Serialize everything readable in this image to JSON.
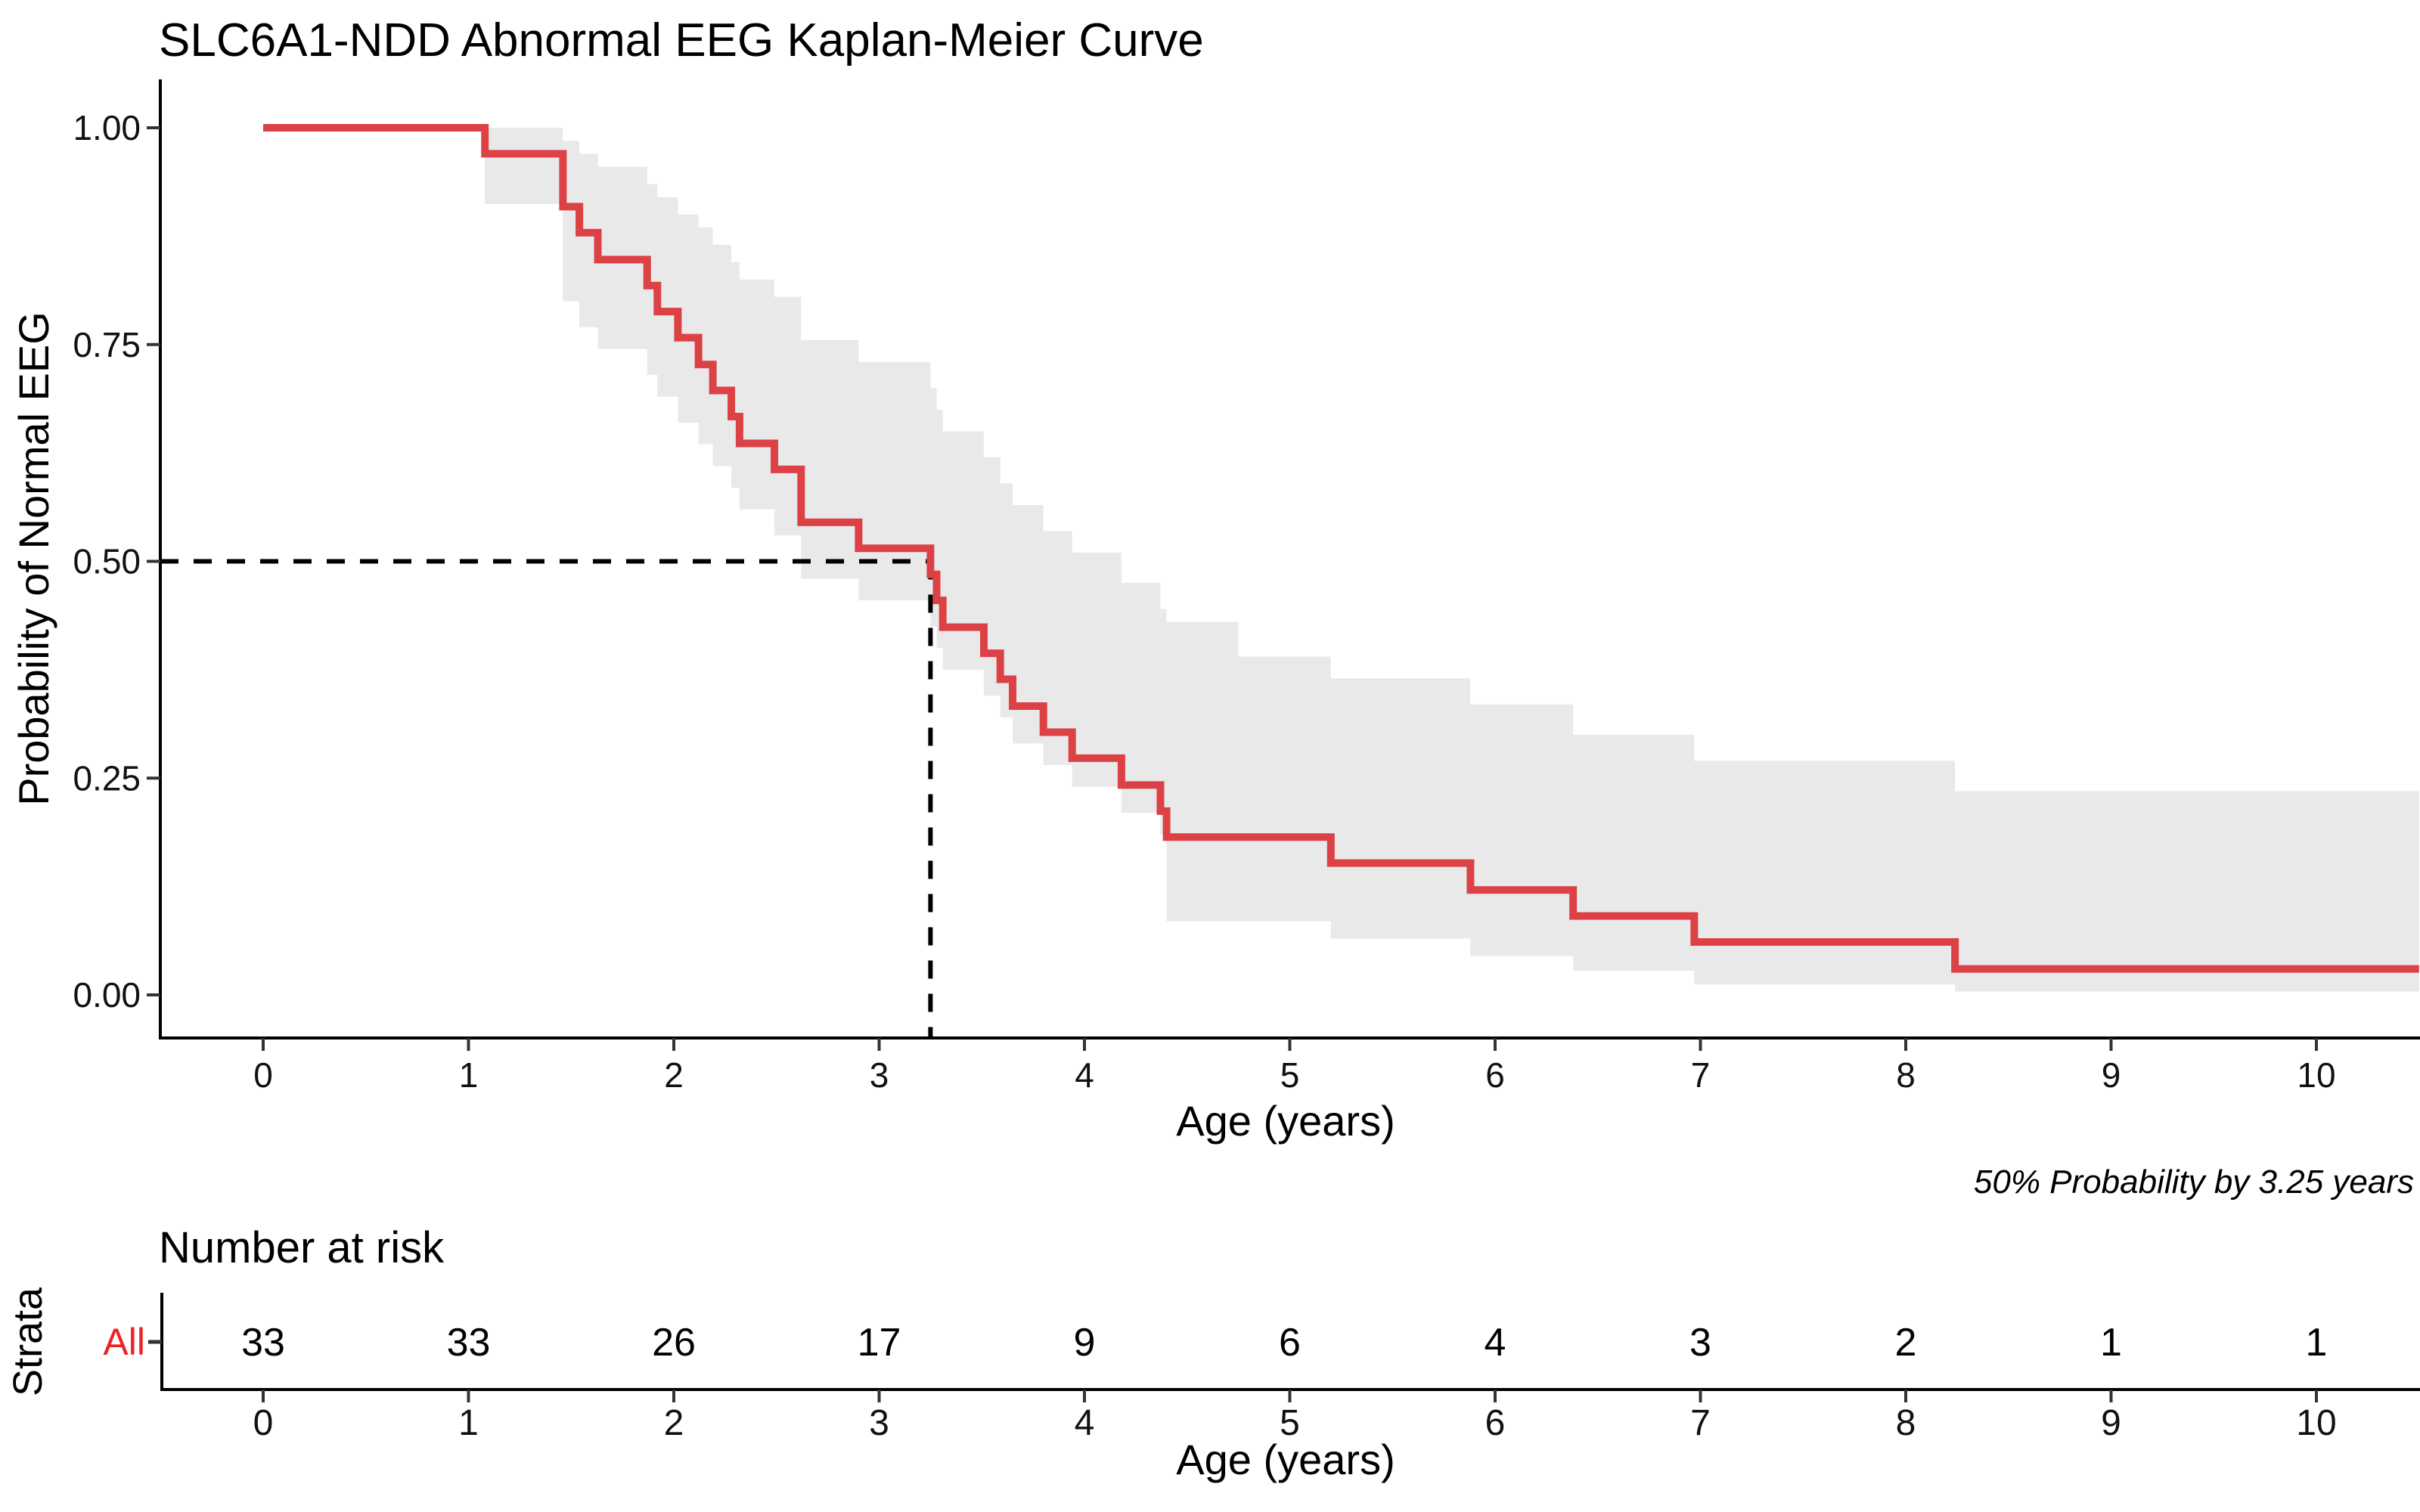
{
  "chart_data": {
    "type": "line",
    "subtype": "kaplan-meier-step",
    "title": "SLC6A1-NDD Abnormal EEG Kaplan-Meier Curve",
    "xlabel": "Age (years)",
    "ylabel": "Probability of Normal EEG",
    "annotation": "50% Probability by 3.25 years",
    "grid": false,
    "legend_position": "none",
    "x_range": [
      -0.5,
      10.5
    ],
    "y_range": [
      0.0,
      1.05
    ],
    "x_ticks": [
      "0",
      "1",
      "2",
      "3",
      "4",
      "5",
      "6",
      "7",
      "8",
      "9",
      "10"
    ],
    "x_tick_values": [
      0,
      1,
      2,
      3,
      4,
      5,
      6,
      7,
      8,
      9,
      10
    ],
    "y_ticks": [
      "0.00",
      "0.25",
      "0.50",
      "0.75",
      "1.00"
    ],
    "y_tick_values": [
      0.0,
      0.25,
      0.5,
      0.75,
      1.0
    ],
    "median": {
      "time": 3.25,
      "probability": 0.5
    },
    "curve_start": [
      0,
      1.0
    ],
    "km_steps": [
      [
        1.08,
        0.97
      ],
      [
        1.46,
        0.909
      ],
      [
        1.54,
        0.879
      ],
      [
        1.63,
        0.848
      ],
      [
        1.87,
        0.818
      ],
      [
        1.92,
        0.788
      ],
      [
        2.02,
        0.758
      ],
      [
        2.12,
        0.727
      ],
      [
        2.19,
        0.697
      ],
      [
        2.28,
        0.667
      ],
      [
        2.32,
        0.636
      ],
      [
        2.49,
        0.606
      ],
      [
        2.62,
        0.545
      ],
      [
        2.9,
        0.515
      ],
      [
        3.25,
        0.485
      ],
      [
        3.28,
        0.455
      ],
      [
        3.31,
        0.424
      ],
      [
        3.51,
        0.394
      ],
      [
        3.59,
        0.364
      ],
      [
        3.65,
        0.333
      ],
      [
        3.8,
        0.303
      ],
      [
        3.94,
        0.273
      ],
      [
        4.18,
        0.242
      ],
      [
        4.37,
        0.212
      ],
      [
        4.4,
        0.182
      ],
      [
        5.2,
        0.152
      ],
      [
        5.88,
        0.121
      ],
      [
        6.38,
        0.091
      ],
      [
        6.97,
        0.061
      ],
      [
        8.24,
        0.03
      ]
    ],
    "ci_band": [
      [
        1.08,
        1.0,
        0.912
      ],
      [
        1.46,
        0.985,
        0.8
      ],
      [
        1.54,
        0.97,
        0.77
      ],
      [
        1.63,
        0.955,
        0.745
      ],
      [
        1.87,
        0.935,
        0.715
      ],
      [
        1.92,
        0.92,
        0.69
      ],
      [
        2.02,
        0.9,
        0.66
      ],
      [
        2.12,
        0.885,
        0.635
      ],
      [
        2.19,
        0.865,
        0.61
      ],
      [
        2.28,
        0.845,
        0.585
      ],
      [
        2.32,
        0.825,
        0.56
      ],
      [
        2.49,
        0.805,
        0.53
      ],
      [
        2.62,
        0.755,
        0.48
      ],
      [
        2.9,
        0.73,
        0.455
      ],
      [
        3.25,
        0.7,
        0.425
      ],
      [
        3.28,
        0.675,
        0.4
      ],
      [
        3.31,
        0.65,
        0.375
      ],
      [
        3.51,
        0.62,
        0.345
      ],
      [
        3.59,
        0.59,
        0.32
      ],
      [
        3.65,
        0.565,
        0.29
      ],
      [
        3.8,
        0.535,
        0.265
      ],
      [
        3.94,
        0.51,
        0.24
      ],
      [
        4.18,
        0.475,
        0.21
      ],
      [
        4.37,
        0.445,
        0.185
      ],
      [
        4.4,
        0.43,
        0.085
      ],
      [
        4.75,
        0.39,
        0.085
      ],
      [
        5.2,
        0.365,
        0.065
      ],
      [
        5.88,
        0.335,
        0.045
      ],
      [
        6.38,
        0.3,
        0.028
      ],
      [
        6.97,
        0.27,
        0.012
      ],
      [
        8.24,
        0.235,
        0.004
      ]
    ],
    "risk_table": {
      "title": "Number at risk",
      "strata_label": "Strata",
      "strata": "All",
      "time_points": [
        0,
        1,
        2,
        3,
        4,
        5,
        6,
        7,
        8,
        9,
        10
      ],
      "counts": [
        "33",
        "33",
        "26",
        "17",
        "9",
        "6",
        "4",
        "3",
        "2",
        "1",
        "1"
      ]
    },
    "colors": {
      "curve": "#DC4145",
      "ci_band": "#E9E9E9",
      "median_dash": "#000000",
      "strata_text": "#EE2222",
      "axis": "#000000",
      "tick": "#333333"
    }
  }
}
